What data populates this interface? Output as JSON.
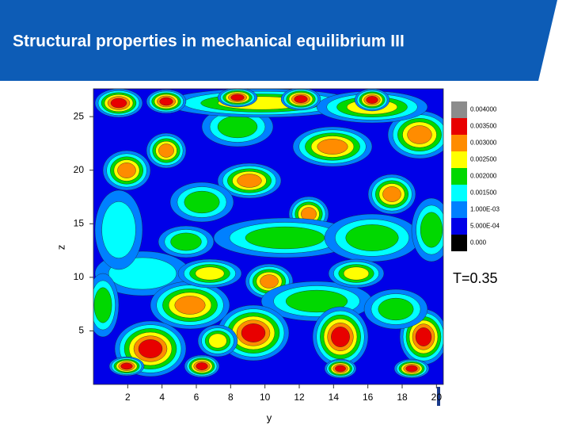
{
  "header": {
    "title": "Structural properties in mechanical equilibrium III"
  },
  "chart_data": {
    "type": "contour",
    "xlabel": "y",
    "ylabel": "z",
    "xlim": [
      0,
      20.4
    ],
    "ylim": [
      0,
      27.6
    ],
    "xticks": [
      2,
      4,
      6,
      8,
      10,
      12,
      14,
      16,
      18,
      20
    ],
    "yticks": [
      5,
      10,
      15,
      20,
      25
    ],
    "colorbar": [
      {
        "value": 0.004,
        "label": "0.004000",
        "color": "#8c8c8c"
      },
      {
        "value": 0.0035,
        "label": "0.003500",
        "color": "#e80000"
      },
      {
        "value": 0.003,
        "label": "0.003000",
        "color": "#ff8c00"
      },
      {
        "value": 0.0025,
        "label": "0.002500",
        "color": "#ffff00"
      },
      {
        "value": 0.002,
        "label": "0.002000",
        "color": "#00d800"
      },
      {
        "value": 0.0015,
        "label": "0.001500",
        "color": "#00ffff"
      },
      {
        "value": 0.001,
        "label": "1.000E-03",
        "color": "#0080ff"
      },
      {
        "value": 0.0005,
        "label": "5.000E-04",
        "color": "#0000e8"
      },
      {
        "value": 0,
        "label": "0.000",
        "color": "#000000"
      }
    ],
    "annotation": "T=0.35"
  }
}
